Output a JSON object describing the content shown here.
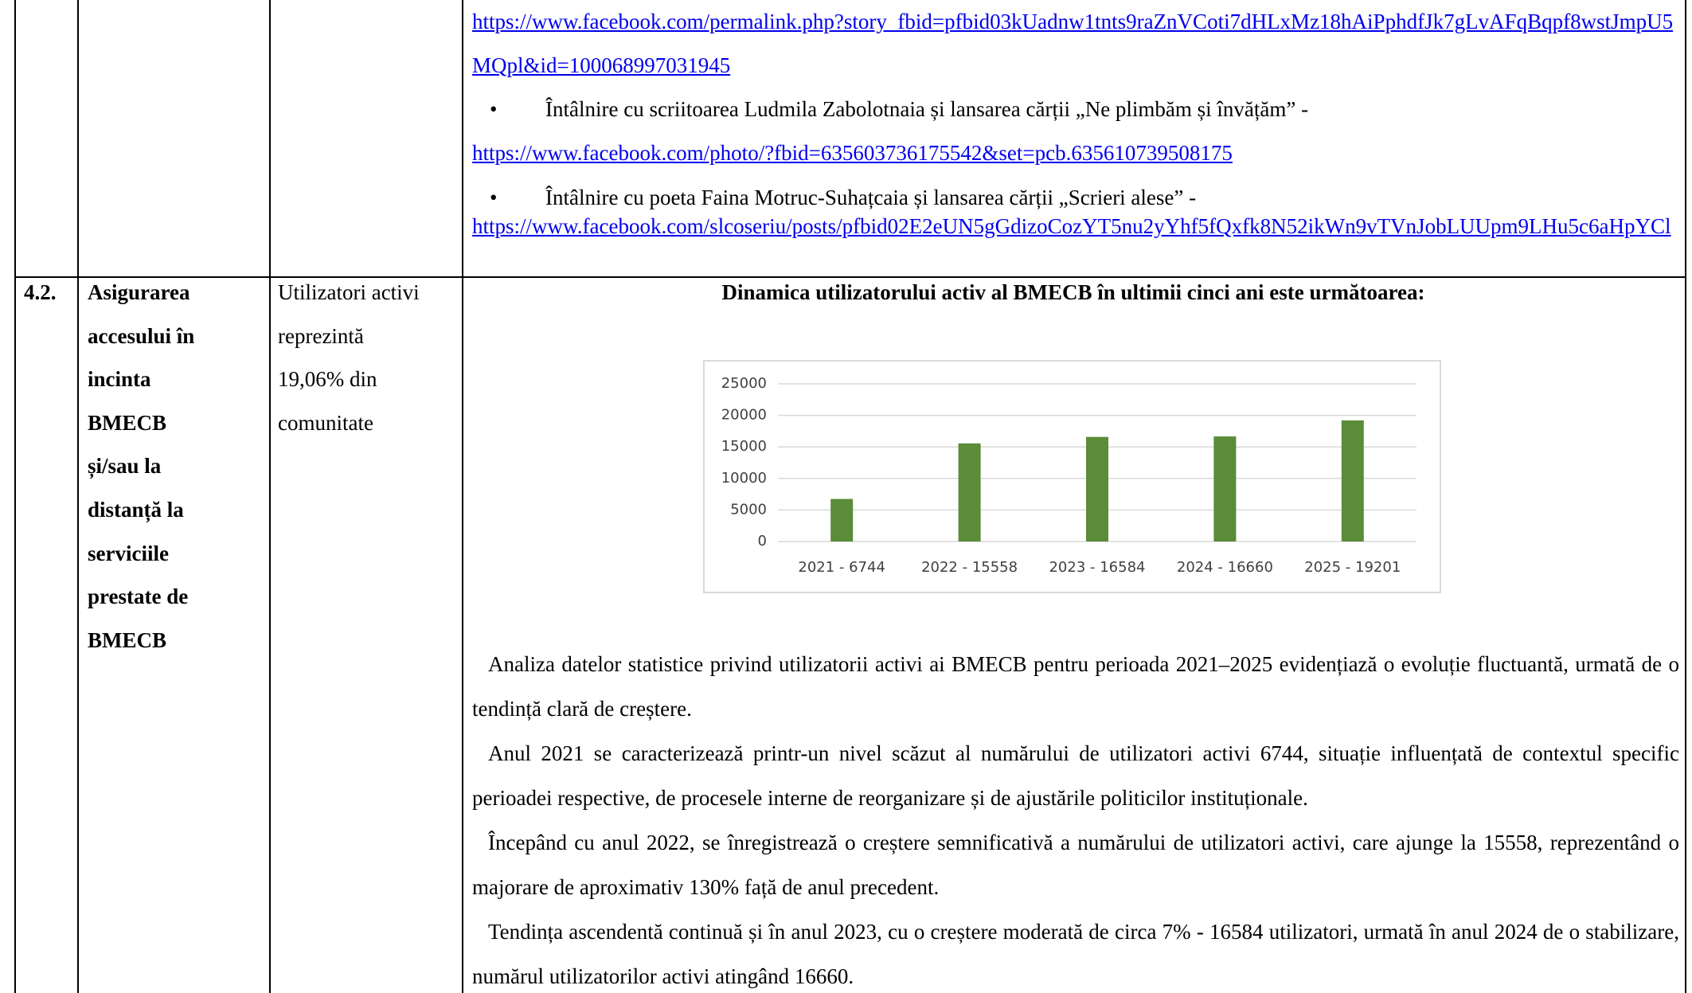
{
  "table": {
    "rows": [
      {
        "link": "https://www.facebook.com/permalink.php?story_fbid=pfbid03kUadnw1tnts9raZnVCoti7dHLxMz18hAiPphdfJk7gLvAFqBqpf8wstJmpU5MQpl&id=100068997031945",
        "items": [
          {
            "text": "Întâlnire cu scriitoarea Ludmila Zabolotnaia și lansarea cărții „Ne plimbăm și învățăm” -",
            "link": "https://www.facebook.com/photo/?fbid=635603736175542&set=pcb.635610739508175"
          },
          {
            "text": "Întâlnire cu poeta Faina Motruc-Suhațcaia  și lansarea cărții „Scrieri alese” -",
            "link": "https://www.facebook.com/slcoseriu/posts/pfbid02E2eUN5gGdizoCozYT5nu2yYhf5fQxfk8N52ikWn9vTVnJobLUUpm9LHu5c6aHpYCl"
          }
        ]
      },
      {
        "number": "4.2.",
        "title_lines": [
          "Asigurarea",
          "accesului în",
          "incinta",
          "BMECB",
          "și/sau la",
          "distanță la",
          "serviciile",
          "prestate de",
          "BMECB"
        ],
        "indicator_lines": [
          "Utilizatori activi",
          "reprezintă",
          "19,06% din",
          "comunitate"
        ],
        "heading": "Dinamica utilizatorului activ al BMECB în ultimii cinci ani este următoarea:",
        "paragraphs": [
          "Analiza datelor statistice privind utilizatorii activi ai BMECB pentru perioada 2021–2025 evidențiază o evoluție fluctuantă, urmată de o tendință clară de creștere.",
          "Anul 2021 se caracterizează printr-un nivel scăzut al numărului de utilizatori activi 6744, situație influențată de contextul specific perioadei respective, de procesele interne de reorganizare și de ajustările politicilor instituționale.",
          "Începând cu anul 2022, se înregistrează o creștere semnificativă a numărului de utilizatori activi, care ajunge la 15558, reprezentând o majorare de aproximativ 130% față de anul precedent.",
          "Tendința ascendentă continuă și în anul 2023, cu o creștere moderată de circa 7% - 16584 utilizatori, urmată în anul 2024 de o stabilizare, numărul utilizatorilor activi atingând 16660."
        ]
      }
    ]
  },
  "chart_data": {
    "type": "bar",
    "categories": [
      "2021 - 6744",
      "2022 - 15558",
      "2023 - 16584",
      "2024 - 16660",
      "2025 - 19201"
    ],
    "values": [
      6744,
      15558,
      16584,
      16660,
      19201
    ],
    "color": "#5b8c38",
    "ylim": [
      0,
      25000
    ],
    "yticks": [
      0,
      5000,
      10000,
      15000,
      20000,
      25000
    ],
    "grid": true
  }
}
